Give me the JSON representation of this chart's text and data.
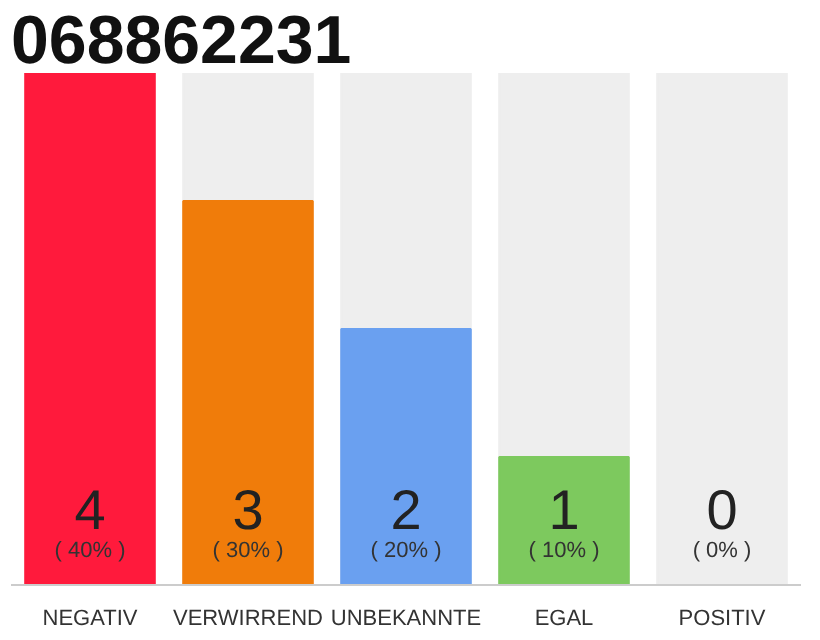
{
  "chart_data": {
    "type": "bar",
    "title": "068862231",
    "categories": [
      "NEGATIV",
      "VERWIRREND",
      "UNBEKANNTE",
      "EGAL",
      "POSITIV"
    ],
    "values": [
      40,
      30,
      20,
      10,
      0
    ],
    "colors": [
      "#ff1a3c",
      "#f07c0a",
      "#6aa0f0",
      "#7dc95e",
      "#cccccc"
    ],
    "value_labels": [
      "( 40% )",
      "( 30% )",
      "( 20% )",
      "( 10% )",
      "( 0% )"
    ],
    "annotations": [
      "4",
      "3",
      "2",
      "1",
      "0"
    ],
    "tick_labels": "x",
    "grid": false
  }
}
